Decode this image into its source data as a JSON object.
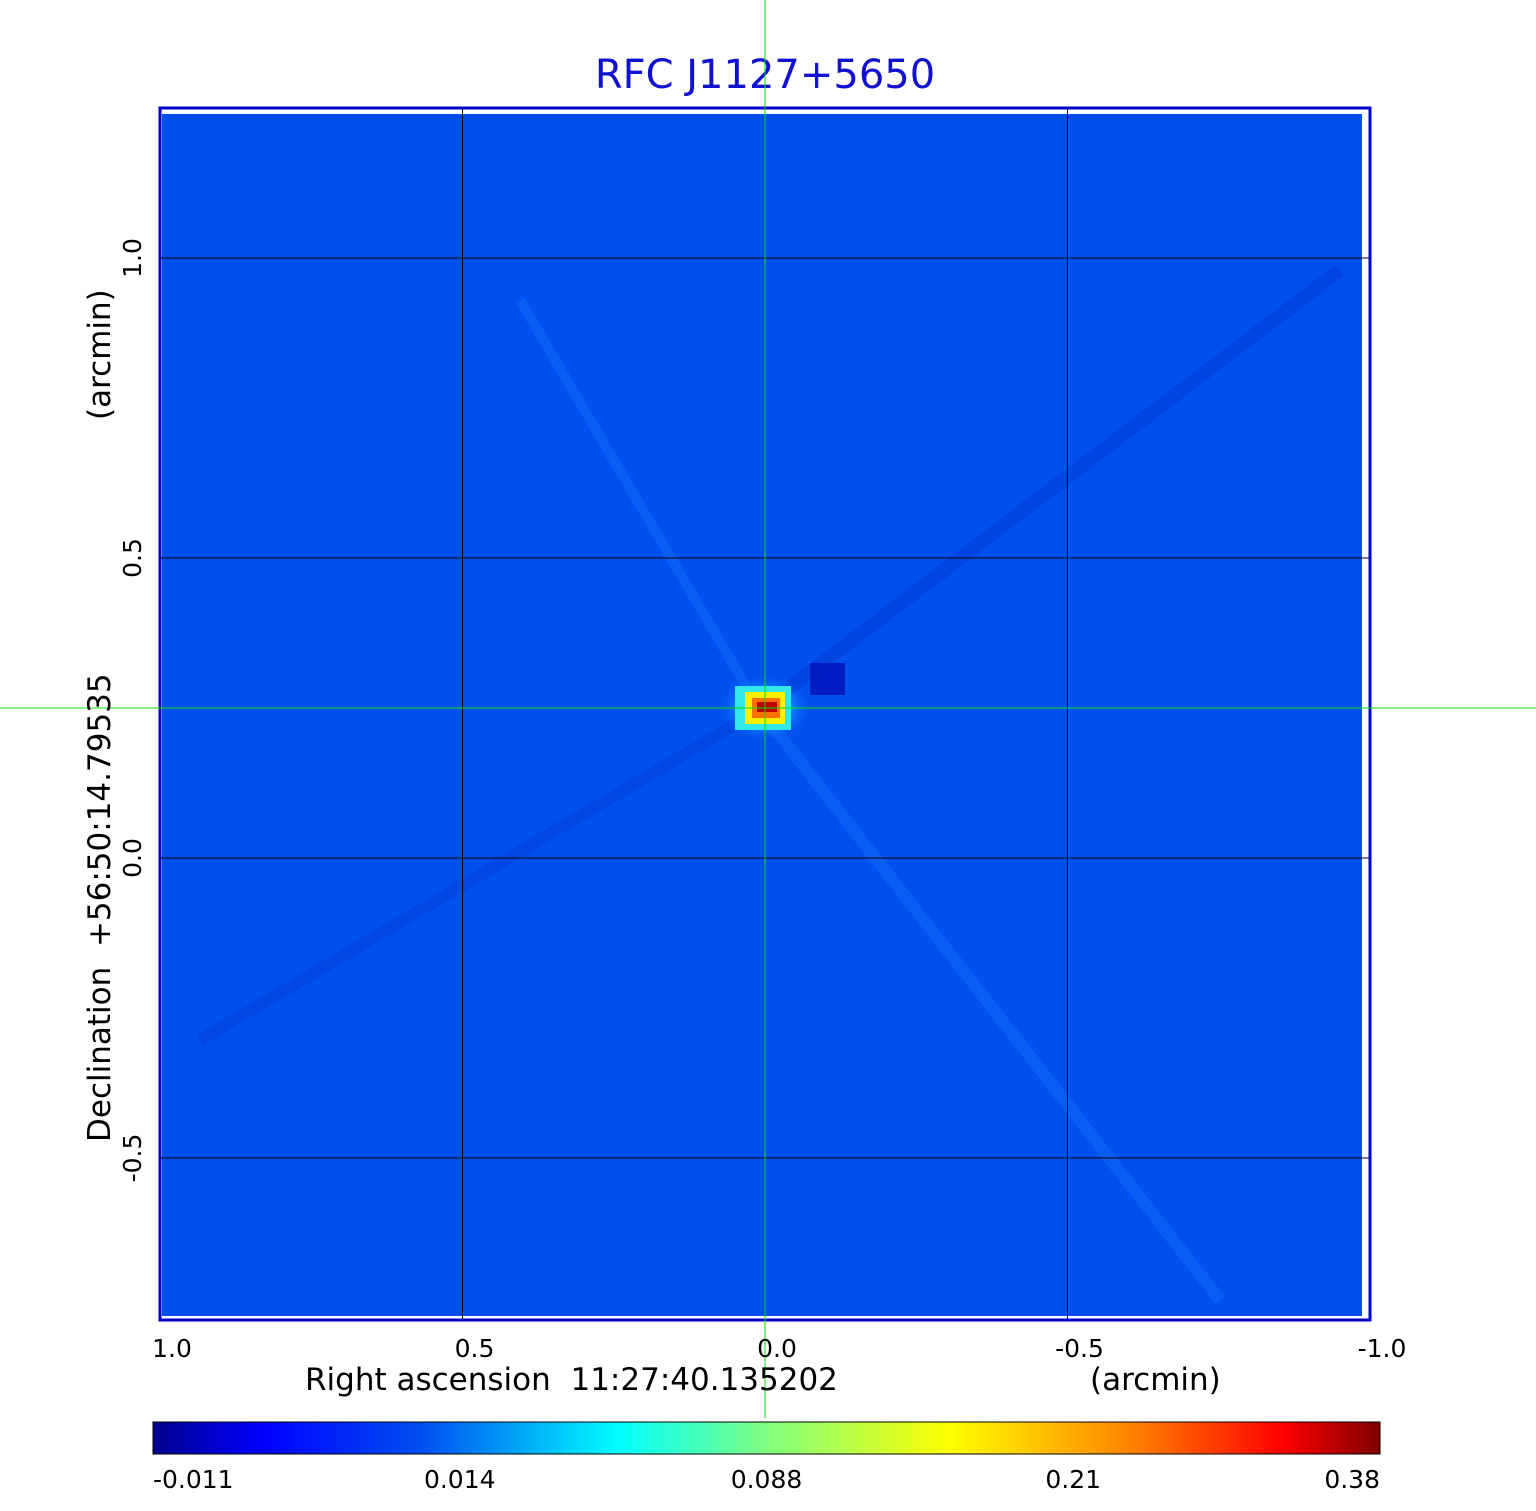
{
  "chart_data": {
    "type": "heatmap",
    "title": "RFC J1127+5650",
    "xlabel": "Right ascension  11:27:40.135202",
    "xunit": "(arcmin)",
    "ylabel": "Declination  +56:50:14.79535",
    "yunit": "(arcmin)",
    "x_ticks": [
      1.0,
      0.5,
      0.0,
      -0.5,
      -1.0
    ],
    "x_tick_labels": [
      "1.0",
      "0.5",
      "0.0",
      "-0.5",
      "-1.0"
    ],
    "xlim": [
      1.0,
      -1.0
    ],
    "y_ticks": [
      1.0,
      0.5,
      0.0,
      -0.5
    ],
    "y_tick_labels": [
      "1.0",
      "0.5",
      "0.0",
      "-0.5"
    ],
    "ylim": [
      -0.77,
      1.25
    ],
    "grid": true,
    "crosshair": {
      "x": 0.0,
      "y": 0.25,
      "color": "#00e000"
    },
    "colorbar": {
      "placement": "bottom",
      "tick_labels": [
        "-0.011",
        "0.014",
        "0.088",
        "0.21",
        "0.38"
      ],
      "colormap": "jet"
    },
    "source_peak": {
      "x": 0.0,
      "y": 0.25,
      "value": 0.38
    },
    "background_color": "#0050f0",
    "frame_color": "#0000c8",
    "title_color": "#1010d0"
  }
}
